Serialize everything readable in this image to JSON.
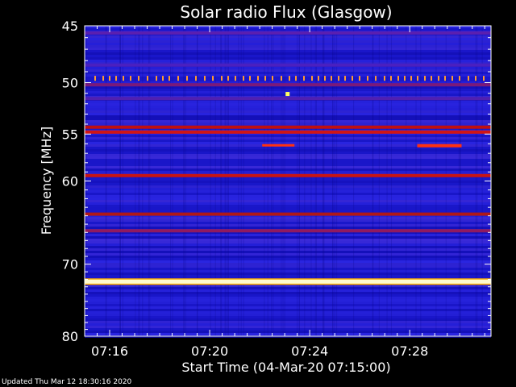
{
  "chart_data": {
    "type": "heatmap",
    "title": "Solar radio Flux (Glasgow)",
    "xlabel": "Start Time (04-Mar-20 07:15:00)",
    "ylabel": "Frequency [MHz]",
    "x_range_minutes": [
      7.25,
      22.0
    ],
    "y_range": [
      45,
      80
    ],
    "x_ticks": [
      "07:16",
      "07:20",
      "07:24",
      "07:28"
    ],
    "x_tick_values": [
      1,
      5,
      9,
      13
    ],
    "y_ticks": [
      "45",
      "50",
      "55",
      "60",
      "70",
      "80"
    ],
    "y_tick_values": [
      45,
      50,
      55,
      60,
      70,
      80
    ],
    "background_colors": [
      "#1a17c9",
      "#2a25e0",
      "#3a2ad8",
      "#1410b8"
    ],
    "bands": [
      {
        "freq": 45.6,
        "color": "#5a1fb0"
      },
      {
        "freq": 48.4,
        "color": "#4a20c0"
      },
      {
        "freq": 50.2,
        "color": "#7a1a7a"
      },
      {
        "freq": 51.5,
        "color": "#5020b0"
      },
      {
        "freq": 54.3,
        "color": "#c01010"
      },
      {
        "freq": 54.8,
        "color": "#d01515"
      },
      {
        "freq": 59.4,
        "color": "#c81414"
      },
      {
        "freq": 63.8,
        "color": "#b01818"
      },
      {
        "freq": 65.8,
        "color": "#901a60"
      },
      {
        "freq": 72.3,
        "color": "#fffacd"
      }
    ],
    "bursts": [
      {
        "freq": 49.6,
        "color": "#ff9a30"
      },
      {
        "freq": 51.1,
        "color": "#ffff60"
      },
      {
        "freq": 56.2,
        "color": "#ff3010"
      }
    ]
  },
  "footer": "Updated Thu Mar 12 18:30:16 2020"
}
